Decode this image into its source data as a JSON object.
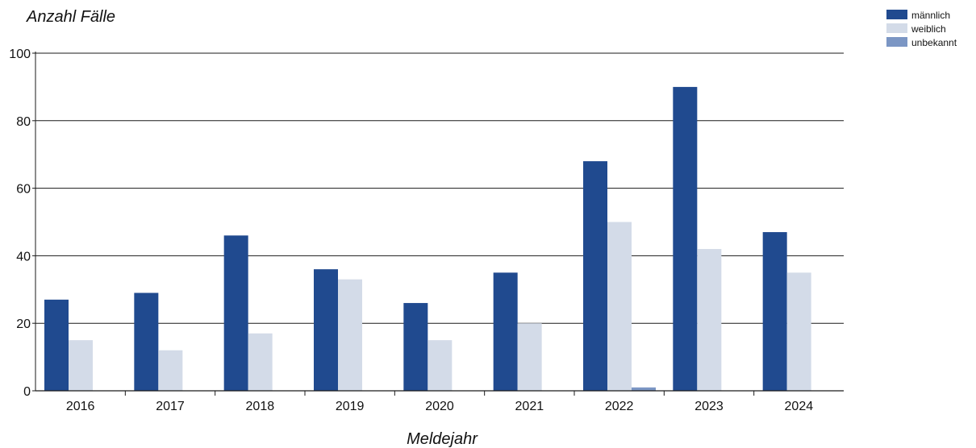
{
  "chart_data": {
    "type": "bar",
    "ylabel": "Anzahl Fälle",
    "xlabel": "Meldejahr",
    "categories": [
      "2016",
      "2017",
      "2018",
      "2019",
      "2020",
      "2021",
      "2022",
      "2023",
      "2024"
    ],
    "series": [
      {
        "name": "männlich",
        "color": "#204a8f",
        "values": [
          27,
          29,
          46,
          36,
          26,
          35,
          68,
          90,
          47
        ]
      },
      {
        "name": "weiblich",
        "color": "#d3dbe8",
        "values": [
          15,
          12,
          17,
          33,
          15,
          20,
          50,
          42,
          35
        ]
      },
      {
        "name": "unbekannt",
        "color": "#7b96c4",
        "values": [
          0,
          0,
          0,
          0,
          0,
          0,
          1,
          0,
          0
        ]
      }
    ],
    "ylim": [
      0,
      100
    ],
    "yticks": [
      0,
      20,
      40,
      60,
      80,
      100
    ],
    "grid": true,
    "legend_position": "top-right"
  }
}
